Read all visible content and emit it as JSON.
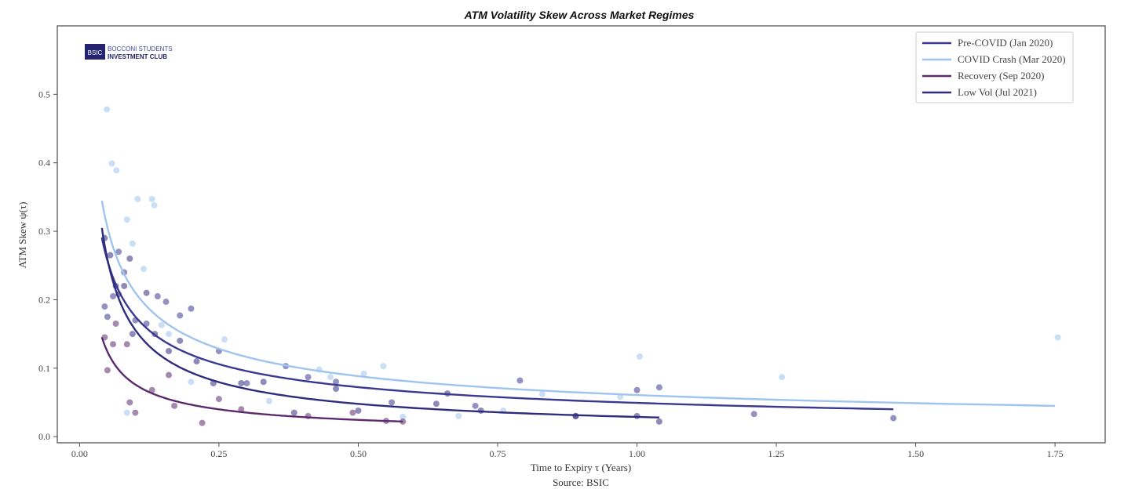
{
  "chart_data": {
    "type": "scatter",
    "title": "ATM Volatility Skew Across Market Regimes",
    "xlabel": "Time to Expiry τ (Years)",
    "ylabel": "ATM Skew ψ(τ)",
    "source": "Source: BSIC",
    "logo": {
      "badge": "BSIC",
      "line1": "BOCCONI STUDENTS",
      "line2": "INVESTMENT CLUB"
    },
    "xlim": [
      -0.04,
      1.84
    ],
    "ylim": [
      -0.009,
      0.6
    ],
    "xticks": [
      0.0,
      0.25,
      0.5,
      0.75,
      1.0,
      1.25,
      1.5,
      1.75
    ],
    "xtick_labels": [
      "0.00",
      "0.25",
      "0.50",
      "0.75",
      "1.00",
      "1.25",
      "1.50",
      "1.75"
    ],
    "yticks": [
      0.0,
      0.1,
      0.2,
      0.3,
      0.4,
      0.5
    ],
    "ytick_labels": [
      "0.0",
      "0.1",
      "0.2",
      "0.3",
      "0.4",
      "0.5"
    ],
    "grid": false,
    "legend_position": "top-right",
    "series": [
      {
        "name": "Pre-COVID (Jan 2020)",
        "color": "#3a3890",
        "fit": {
          "form": "a*x^-b",
          "a": 0.0493,
          "b": 0.551,
          "x_range": [
            0.04,
            1.46
          ]
        },
        "points": [
          [
            0.045,
            0.19
          ],
          [
            0.05,
            0.175
          ],
          [
            0.06,
            0.205
          ],
          [
            0.07,
            0.27
          ],
          [
            0.08,
            0.24
          ],
          [
            0.1,
            0.17
          ],
          [
            0.12,
            0.165
          ],
          [
            0.14,
            0.205
          ],
          [
            0.155,
            0.197
          ],
          [
            0.18,
            0.177
          ],
          [
            0.2,
            0.187
          ],
          [
            0.25,
            0.125
          ],
          [
            0.3,
            0.078
          ],
          [
            0.37,
            0.103
          ],
          [
            0.41,
            0.087
          ],
          [
            0.46,
            0.08
          ],
          [
            0.56,
            0.05
          ],
          [
            0.71,
            0.045
          ],
          [
            0.79,
            0.082
          ],
          [
            0.89,
            0.03
          ],
          [
            1.0,
            0.068
          ],
          [
            1.04,
            0.072
          ],
          [
            1.21,
            0.033
          ],
          [
            1.46,
            0.027
          ]
        ]
      },
      {
        "name": "COVID Crash (Mar 2020)",
        "color": "#9fc4ee",
        "fit": {
          "form": "a*x^-b",
          "a": 0.0608,
          "b": 0.539,
          "x_range": [
            0.04,
            1.75
          ]
        },
        "points": [
          [
            0.049,
            0.478
          ],
          [
            0.058,
            0.399
          ],
          [
            0.066,
            0.389
          ],
          [
            0.104,
            0.347
          ],
          [
            0.13,
            0.347
          ],
          [
            0.134,
            0.338
          ],
          [
            0.085,
            0.317
          ],
          [
            0.095,
            0.282
          ],
          [
            0.115,
            0.245
          ],
          [
            0.147,
            0.163
          ],
          [
            0.16,
            0.15
          ],
          [
            0.2,
            0.08
          ],
          [
            0.26,
            0.142
          ],
          [
            0.34,
            0.052
          ],
          [
            0.43,
            0.098
          ],
          [
            0.45,
            0.087
          ],
          [
            0.51,
            0.092
          ],
          [
            0.545,
            0.103
          ],
          [
            0.58,
            0.029
          ],
          [
            0.68,
            0.03
          ],
          [
            0.76,
            0.038
          ],
          [
            0.83,
            0.062
          ],
          [
            0.97,
            0.058
          ],
          [
            1.005,
            0.117
          ],
          [
            1.26,
            0.087
          ],
          [
            1.755,
            0.145
          ],
          [
            0.085,
            0.035
          ]
        ]
      },
      {
        "name": "Recovery (Sep 2020)",
        "color": "#5c2a6c",
        "fit": {
          "form": "a*x^-b",
          "a": 0.015,
          "b": 0.705,
          "x_range": [
            0.04,
            0.58
          ]
        },
        "points": [
          [
            0.045,
            0.145
          ],
          [
            0.06,
            0.135
          ],
          [
            0.065,
            0.165
          ],
          [
            0.05,
            0.097
          ],
          [
            0.085,
            0.135
          ],
          [
            0.1,
            0.035
          ],
          [
            0.09,
            0.05
          ],
          [
            0.13,
            0.068
          ],
          [
            0.16,
            0.09
          ],
          [
            0.17,
            0.045
          ],
          [
            0.22,
            0.02
          ],
          [
            0.25,
            0.055
          ],
          [
            0.29,
            0.04
          ],
          [
            0.41,
            0.03
          ],
          [
            0.49,
            0.035
          ],
          [
            0.55,
            0.023
          ],
          [
            0.58,
            0.022
          ]
        ]
      },
      {
        "name": "Low Vol (Jul 2021)",
        "color": "#2f2c7c",
        "fit": {
          "form": "a*x^-b",
          "a": 0.0288,
          "b": 0.733,
          "x_range": [
            0.04,
            1.04
          ]
        },
        "points": [
          [
            0.045,
            0.29
          ],
          [
            0.055,
            0.265
          ],
          [
            0.065,
            0.22
          ],
          [
            0.07,
            0.208
          ],
          [
            0.08,
            0.22
          ],
          [
            0.09,
            0.26
          ],
          [
            0.095,
            0.15
          ],
          [
            0.12,
            0.21
          ],
          [
            0.135,
            0.15
          ],
          [
            0.16,
            0.125
          ],
          [
            0.18,
            0.14
          ],
          [
            0.21,
            0.11
          ],
          [
            0.24,
            0.078
          ],
          [
            0.29,
            0.078
          ],
          [
            0.33,
            0.08
          ],
          [
            0.385,
            0.035
          ],
          [
            0.46,
            0.07
          ],
          [
            0.5,
            0.038
          ],
          [
            0.64,
            0.048
          ],
          [
            0.66,
            0.063
          ],
          [
            0.72,
            0.038
          ],
          [
            0.89,
            0.03
          ],
          [
            1.0,
            0.03
          ],
          [
            1.04,
            0.022
          ]
        ]
      }
    ]
  }
}
